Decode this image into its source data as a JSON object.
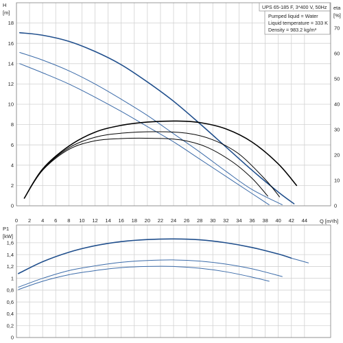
{
  "chart_data": [
    {
      "type": "line",
      "title": "UPS 65-185 F, 3*400 V, 50Hz",
      "info_lines": [
        "Pumped liquid = Water",
        "Liquid temperature = 333 K",
        "Density = 983.2 kg/m³"
      ],
      "x_axis": {
        "label": "Q [m³/h]",
        "range": [
          0,
          48
        ],
        "ticks": [
          0,
          2,
          4,
          6,
          8,
          10,
          12,
          14,
          16,
          18,
          20,
          22,
          24,
          26,
          28,
          30,
          32,
          34,
          36,
          38,
          40,
          42,
          44
        ]
      },
      "y_axis_left": {
        "label_name": "H",
        "label_unit": "[m]",
        "range": [
          0,
          20
        ],
        "ticks": [
          0,
          2,
          4,
          6,
          8,
          10,
          12,
          14,
          16,
          18
        ]
      },
      "y_axis_right": {
        "label_name": "eta",
        "label_unit": "[%]",
        "range": [
          0,
          80
        ],
        "ticks": [
          0,
          10,
          20,
          30,
          40,
          50,
          60,
          70
        ]
      },
      "grid": true,
      "series": [
        {
          "axis": "left",
          "color": "#1f4e8c",
          "width": 1.6,
          "x": [
            0.5,
            4,
            8,
            12,
            16,
            20,
            24,
            28,
            32,
            36,
            40,
            42.4
          ],
          "y": [
            17.05,
            16.8,
            16.2,
            15.2,
            13.9,
            12.2,
            10.3,
            8.1,
            5.8,
            3.5,
            1.35,
            0.2
          ]
        },
        {
          "axis": "left",
          "color": "#3a6aa8",
          "width": 1.0,
          "x": [
            0.5,
            4,
            8,
            12,
            16,
            20,
            24,
            28,
            32,
            36,
            40.6
          ],
          "y": [
            15.1,
            14.35,
            13.3,
            12.0,
            10.5,
            8.9,
            7.1,
            5.3,
            3.4,
            1.6,
            0.1
          ]
        },
        {
          "axis": "left",
          "color": "#3a6aa8",
          "width": 1.0,
          "x": [
            0.5,
            4,
            8,
            12,
            16,
            20,
            24,
            28,
            32,
            36,
            38.6
          ],
          "y": [
            14.0,
            13.1,
            12.0,
            10.7,
            9.3,
            7.8,
            6.3,
            4.6,
            2.9,
            1.2,
            0.1
          ]
        },
        {
          "axis": "right",
          "color": "#000000",
          "width": 1.6,
          "x": [
            1.2,
            4,
            8,
            12,
            16,
            20,
            24.5,
            28,
            32,
            36,
            40,
            42.8
          ],
          "y": [
            3,
            14.5,
            23.5,
            29,
            31.7,
            33,
            33.4,
            32.8,
            30.3,
            25.1,
            16.5,
            8
          ]
        },
        {
          "axis": "right",
          "color": "#000000",
          "width": 1.0,
          "x": [
            1.2,
            4,
            8,
            12,
            16,
            21.2,
            26,
            30,
            34,
            38,
            40.2
          ],
          "y": [
            3,
            14.2,
            22.8,
            27,
            28.6,
            29.2,
            28.6,
            26.0,
            20.4,
            10.4,
            3.5
          ]
        },
        {
          "axis": "right",
          "color": "#000000",
          "width": 1.0,
          "x": [
            1.2,
            4,
            8,
            12,
            16,
            20.6,
            25,
            29,
            33,
            36,
            38.4
          ],
          "y": [
            3,
            14,
            22.2,
            25.6,
            26.5,
            26.6,
            26.0,
            23.2,
            17.3,
            10.8,
            3.8
          ]
        }
      ]
    },
    {
      "type": "line",
      "x_axis": {
        "label": "Q [m³/h]",
        "range": [
          0,
          48
        ],
        "ticks": [
          0,
          2,
          4,
          6,
          8,
          10,
          12,
          14,
          16,
          18,
          20,
          22,
          24,
          26,
          28,
          30,
          32,
          34,
          36,
          38,
          40,
          42,
          44
        ]
      },
      "y_axis_left": {
        "label_name": "P1",
        "label_unit": "[kW]",
        "range": [
          0,
          1.9
        ],
        "ticks": [
          0,
          0.2,
          0.4,
          0.6,
          0.8,
          1.0,
          1.2,
          1.4,
          1.6
        ]
      },
      "grid": true,
      "series": [
        {
          "color": "#1f4e8c",
          "width": 1.6,
          "x": [
            0.3,
            4,
            8,
            12,
            16,
            20,
            24,
            28,
            32,
            36,
            40,
            42
          ],
          "y": [
            1.08,
            1.28,
            1.44,
            1.55,
            1.62,
            1.655,
            1.665,
            1.65,
            1.6,
            1.52,
            1.41,
            1.34
          ]
        },
        {
          "color": "#3a6aa8",
          "width": 1.0,
          "x": [
            42,
            44.6
          ],
          "y": [
            1.34,
            1.26
          ]
        },
        {
          "color": "#3a6aa8",
          "width": 1.0,
          "x": [
            0.3,
            4,
            8,
            12,
            16,
            20,
            24,
            28,
            32,
            36,
            40.6
          ],
          "y": [
            0.85,
            1.0,
            1.13,
            1.21,
            1.27,
            1.3,
            1.31,
            1.29,
            1.24,
            1.16,
            1.03
          ]
        },
        {
          "color": "#3a6aa8",
          "width": 1.0,
          "x": [
            0.3,
            4,
            8,
            12,
            16,
            20,
            24,
            28,
            32,
            36,
            38.6
          ],
          "y": [
            0.81,
            0.95,
            1.06,
            1.13,
            1.18,
            1.2,
            1.2,
            1.17,
            1.11,
            1.02,
            0.95
          ]
        }
      ]
    }
  ]
}
